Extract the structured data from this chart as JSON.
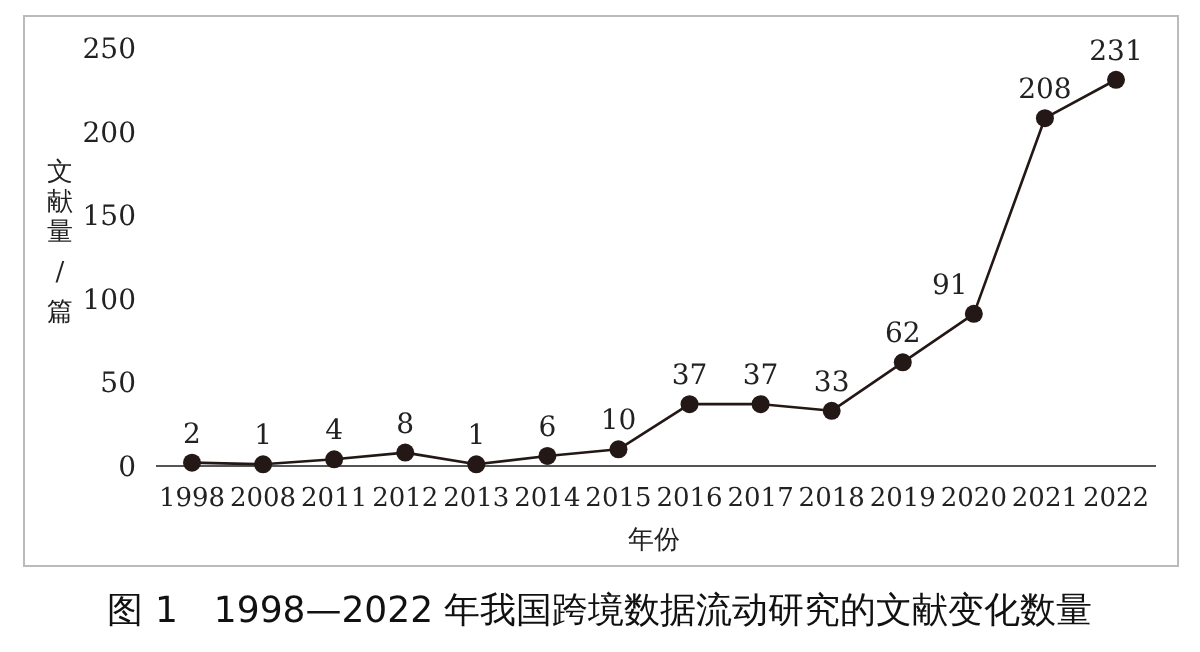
{
  "chart_data": {
    "type": "line",
    "title": "图 1　1998—2022 年我国跨境数据流动研究的文献变化数量",
    "xlabel": "年份",
    "ylabel": "文献量 / 篇",
    "categories": [
      "1998",
      "2008",
      "2011",
      "2012",
      "2013",
      "2014",
      "2015",
      "2016",
      "2017",
      "2018",
      "2019",
      "2020",
      "2021",
      "2022"
    ],
    "series": [
      {
        "color": "#231815",
        "values": [
          2,
          1,
          4,
          8,
          1,
          6,
          10,
          37,
          37,
          33,
          62,
          91,
          208,
          231
        ]
      }
    ],
    "ylim": [
      0,
      250
    ],
    "yticks": [
      0,
      50,
      100,
      150,
      200,
      250
    ],
    "marker": "circle",
    "line_style": "solid",
    "data_labels": true
  }
}
